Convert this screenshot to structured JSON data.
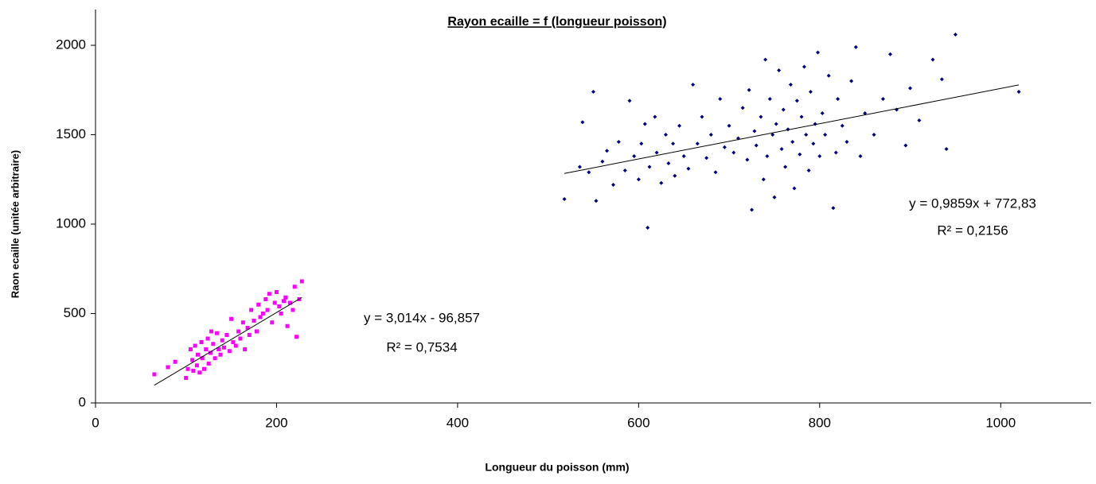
{
  "chart_data": {
    "type": "scatter",
    "title": "Rayon ecaille = f (longueur poisson)",
    "x_label": "Longueur du poisson (mm)",
    "y_label": "Raon ecaille (unitée arbitraire)",
    "xlim": [
      0,
      1100
    ],
    "xticks": [
      0,
      200,
      400,
      600,
      800,
      1000
    ],
    "ylim": [
      0,
      2200
    ],
    "yticks": [
      0,
      500,
      1000,
      1500,
      2000
    ],
    "series": [
      {
        "color": "#ff00ff",
        "marker": "square",
        "x": [
          65,
          80,
          88,
          100,
          102,
          105,
          107,
          108,
          110,
          112,
          113,
          115,
          117,
          118,
          120,
          122,
          124,
          125,
          127,
          128,
          130,
          132,
          134,
          136,
          138,
          140,
          142,
          145,
          148,
          150,
          152,
          155,
          158,
          160,
          163,
          165,
          168,
          170,
          172,
          175,
          178,
          180,
          182,
          185,
          188,
          190,
          192,
          195,
          198,
          200,
          203,
          205,
          208,
          210,
          212,
          215,
          218,
          220,
          222,
          225,
          228
        ],
        "values": [
          160,
          200,
          230,
          140,
          190,
          300,
          240,
          180,
          320,
          210,
          270,
          170,
          340,
          250,
          190,
          300,
          360,
          220,
          280,
          400,
          330,
          250,
          390,
          300,
          270,
          350,
          310,
          380,
          290,
          470,
          340,
          320,
          400,
          360,
          450,
          300,
          420,
          380,
          520,
          460,
          400,
          550,
          480,
          500,
          580,
          520,
          610,
          450,
          560,
          620,
          540,
          500,
          570,
          590,
          430,
          560,
          520,
          650,
          370,
          580,
          680
        ],
        "trendline": {
          "x": [
            65,
            228
          ],
          "values": [
            99,
            590
          ]
        },
        "equation": "y = 3,014x - 96,857",
        "r2": "R² = 0,7534"
      },
      {
        "color": "#000080",
        "marker": "diamond",
        "x": [
          518,
          535,
          538,
          545,
          550,
          553,
          560,
          565,
          572,
          578,
          585,
          590,
          595,
          600,
          603,
          607,
          610,
          612,
          618,
          620,
          625,
          630,
          633,
          638,
          640,
          645,
          650,
          655,
          660,
          665,
          670,
          675,
          680,
          685,
          690,
          695,
          700,
          705,
          710,
          715,
          720,
          722,
          725,
          728,
          730,
          735,
          738,
          740,
          742,
          745,
          748,
          750,
          752,
          755,
          758,
          760,
          762,
          765,
          768,
          770,
          772,
          775,
          778,
          780,
          783,
          785,
          788,
          790,
          793,
          795,
          798,
          800,
          803,
          806,
          810,
          815,
          818,
          820,
          825,
          830,
          835,
          840,
          845,
          850,
          860,
          870,
          878,
          885,
          895,
          900,
          910,
          925,
          935,
          940,
          950,
          1020
        ],
        "values": [
          1140,
          1320,
          1570,
          1290,
          1740,
          1130,
          1350,
          1410,
          1220,
          1460,
          1300,
          1690,
          1380,
          1250,
          1450,
          1560,
          980,
          1320,
          1600,
          1400,
          1230,
          1500,
          1340,
          1450,
          1270,
          1550,
          1380,
          1310,
          1780,
          1450,
          1600,
          1370,
          1500,
          1290,
          1700,
          1430,
          1550,
          1400,
          1480,
          1650,
          1360,
          1750,
          1080,
          1520,
          1440,
          1600,
          1250,
          1920,
          1380,
          1700,
          1500,
          1150,
          1560,
          1860,
          1420,
          1640,
          1320,
          1530,
          1780,
          1460,
          1200,
          1690,
          1390,
          1600,
          1880,
          1500,
          1300,
          1740,
          1450,
          1560,
          1960,
          1380,
          1620,
          1500,
          1830,
          1090,
          1400,
          1700,
          1550,
          1460,
          1800,
          1990,
          1380,
          1620,
          1500,
          1700,
          1950,
          1640,
          1440,
          1760,
          1580,
          1920,
          1810,
          1420,
          2060,
          1740
        ],
        "trendline": {
          "x": [
            518,
            1020
          ],
          "values": [
            1283.5,
            1778.5
          ]
        },
        "equation": "y = 0,9859x + 772,83",
        "r2": "R² = 0,2156"
      }
    ]
  }
}
